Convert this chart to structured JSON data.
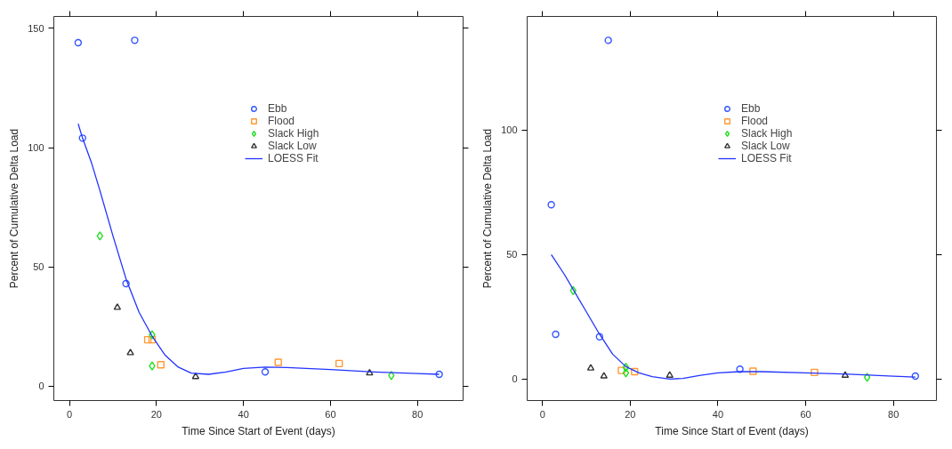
{
  "chart_data": [
    {
      "type": "scatter",
      "xlabel": "Time Since Start of Event (days)",
      "ylabel": "Percent of Cumulative Delta Load",
      "xlim": [
        -3.6,
        90.5
      ],
      "ylim": [
        -6,
        155
      ],
      "xticks": [
        0,
        20,
        40,
        60,
        80
      ],
      "yticks": [
        0,
        50,
        100,
        150
      ],
      "grid": false,
      "legend": "top",
      "series": [
        {
          "name": "Ebb",
          "marker": "circle",
          "color": "#3355ff",
          "x": [
            2,
            3,
            13,
            15,
            45,
            85
          ],
          "values": [
            144,
            104,
            43,
            145,
            6,
            5
          ]
        },
        {
          "name": "Flood",
          "marker": "square",
          "color": "#ff9933",
          "x": [
            18,
            19,
            21,
            48,
            62
          ],
          "values": [
            19.5,
            19.5,
            9,
            10,
            9.5
          ]
        },
        {
          "name": "Slack High",
          "marker": "diamond",
          "color": "#22dd22",
          "x": [
            7,
            19,
            19,
            74
          ],
          "values": [
            63,
            21.5,
            8.5,
            4.5
          ]
        },
        {
          "name": "Slack Low",
          "marker": "triangle",
          "color": "#333333",
          "x": [
            11,
            14,
            29,
            69
          ],
          "values": [
            33,
            14,
            4,
            5.5
          ]
        },
        {
          "name": "LOESS Fit",
          "type": "line",
          "color": "#2233ff",
          "x": [
            2,
            3,
            5,
            7,
            10,
            13,
            16,
            19,
            22,
            25,
            28,
            32,
            36,
            40,
            45,
            50,
            60,
            70,
            80,
            85
          ],
          "values": [
            110,
            104,
            94,
            82,
            63,
            45,
            31,
            21,
            13,
            8,
            5.5,
            5,
            6,
            7.5,
            8,
            7.8,
            7,
            6,
            5.3,
            5
          ]
        }
      ]
    },
    {
      "type": "scatter",
      "xlabel": "Time Since Start of Event (days)",
      "ylabel": "Percent of Cumulative Delta Load",
      "xlim": [
        -3.5,
        89.8
      ],
      "ylim": [
        -8.6,
        145.6
      ],
      "xticks": [
        0,
        20,
        40,
        60,
        80
      ],
      "yticks": [
        0,
        50,
        100
      ],
      "grid": false,
      "legend": "top",
      "series": [
        {
          "name": "Ebb",
          "marker": "circle",
          "color": "#3355ff",
          "x": [
            2,
            3,
            13,
            15,
            45,
            85
          ],
          "values": [
            70,
            18,
            17,
            136,
            4,
            1.2
          ]
        },
        {
          "name": "Flood",
          "marker": "square",
          "color": "#ff9933",
          "x": [
            18,
            21,
            48,
            62
          ],
          "values": [
            3.5,
            3,
            3.2,
            2.7
          ]
        },
        {
          "name": "Slack High",
          "marker": "diamond",
          "color": "#22dd22",
          "x": [
            7,
            19,
            19,
            74
          ],
          "values": [
            35.5,
            4.7,
            2.5,
            0.7
          ]
        },
        {
          "name": "Slack Low",
          "marker": "triangle",
          "color": "#333333",
          "x": [
            11,
            14,
            29,
            69
          ],
          "values": [
            4.4,
            1.2,
            1.5,
            1.5
          ]
        },
        {
          "name": "LOESS Fit",
          "type": "line",
          "color": "#2233ff",
          "x": [
            2,
            5,
            7,
            10,
            13,
            16,
            19,
            22,
            25,
            29,
            32,
            36,
            40,
            45,
            50,
            60,
            70,
            80,
            85
          ],
          "values": [
            50,
            42,
            36,
            27,
            18,
            10,
            5,
            2.5,
            1,
            0,
            0.3,
            1.5,
            2.5,
            3,
            3,
            2.5,
            2,
            1.2,
            0.8
          ]
        }
      ]
    }
  ]
}
